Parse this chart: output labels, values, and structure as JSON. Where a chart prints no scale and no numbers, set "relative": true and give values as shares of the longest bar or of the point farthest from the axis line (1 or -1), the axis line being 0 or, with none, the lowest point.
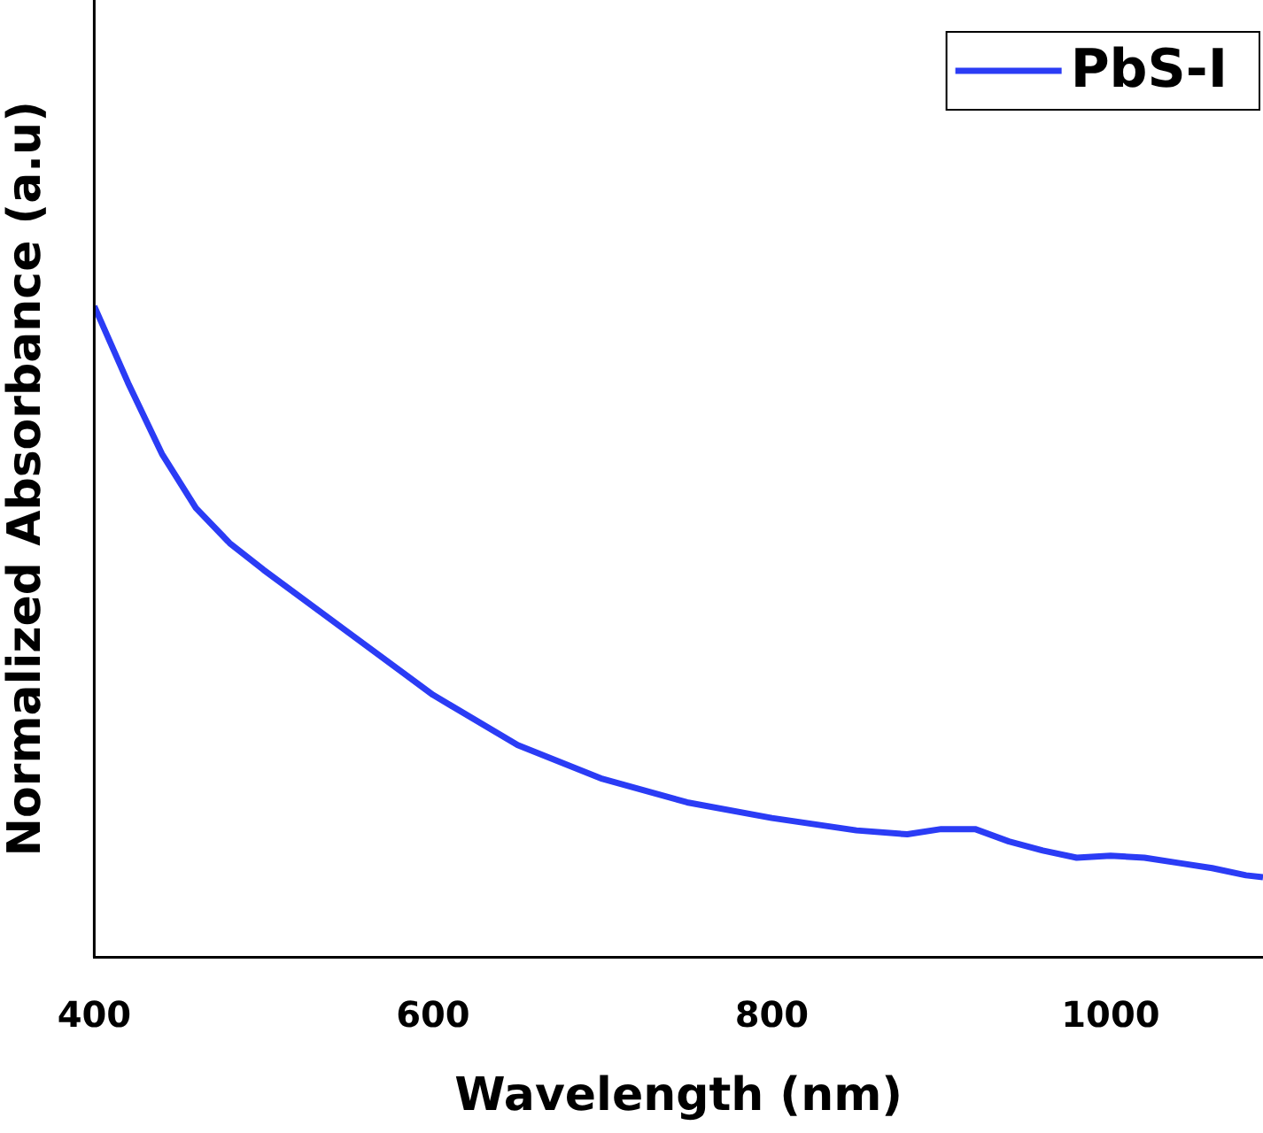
{
  "chart_data": {
    "type": "line",
    "xlabel": "Wavelength (nm)",
    "ylabel": "Normalized Absorbance (a.u)",
    "relative": true,
    "xlim": [
      400,
      1090
    ],
    "xticks": [
      400,
      600,
      800,
      1000
    ],
    "grid": false,
    "legend": "top right",
    "marker": "none",
    "line_style": "solid",
    "series": [
      {
        "name": "PbS-I",
        "color": "#2b3cf5",
        "x": [
          400,
          420,
          440,
          460,
          480,
          500,
          550,
          600,
          650,
          700,
          750,
          800,
          850,
          880,
          900,
          920,
          940,
          960,
          980,
          1000,
          1020,
          1040,
          1060,
          1080,
          1090
        ],
        "values": [
          1,
          0.882,
          0.773,
          0.69,
          0.636,
          0.595,
          0.499,
          0.403,
          0.326,
          0.274,
          0.238,
          0.214,
          0.195,
          0.189,
          0.197,
          0.197,
          0.178,
          0.164,
          0.153,
          0.156,
          0.153,
          0.145,
          0.137,
          0.126,
          0.123
        ]
      }
    ]
  }
}
